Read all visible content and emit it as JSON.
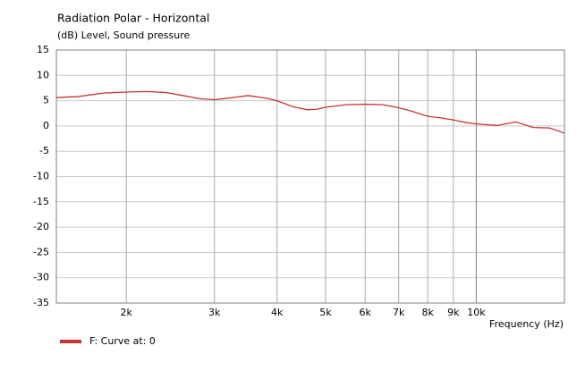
{
  "chart_data": {
    "type": "line",
    "title": "Radiation Polar - Horizontal",
    "subtitle": "(dB)  Level, Sound pressure",
    "x_label": "Frequency  (Hz)",
    "xscale": "log",
    "x": [
      1450,
      1600,
      1800,
      2000,
      2200,
      2400,
      2600,
      2800,
      3000,
      3200,
      3500,
      3800,
      4000,
      4300,
      4600,
      4800,
      5000,
      5500,
      6000,
      6500,
      7000,
      7500,
      8000,
      8500,
      9000,
      9500,
      10000,
      11000,
      12000,
      13000,
      14000,
      15000
    ],
    "series": [
      {
        "name": "F: Curve at: 0",
        "color": "#c83232",
        "values": [
          5.6,
          5.8,
          6.5,
          6.7,
          6.8,
          6.6,
          6.0,
          5.4,
          5.2,
          5.5,
          6.0,
          5.5,
          5.0,
          3.8,
          3.2,
          3.3,
          3.7,
          4.2,
          4.3,
          4.2,
          3.6,
          2.8,
          1.9,
          1.6,
          1.2,
          0.7,
          0.4,
          0.1,
          0.8,
          -0.3,
          -0.4,
          -1.4
        ]
      }
    ],
    "xlim": [
      1450,
      15000
    ],
    "ylim": [
      -35,
      15
    ],
    "xticks": [
      {
        "value": 2000,
        "label": "2k"
      },
      {
        "value": 3000,
        "label": "3k"
      },
      {
        "value": 4000,
        "label": "4k"
      },
      {
        "value": 5000,
        "label": "5k"
      },
      {
        "value": 6000,
        "label": "6k"
      },
      {
        "value": 7000,
        "label": "7k"
      },
      {
        "value": 8000,
        "label": "8k"
      },
      {
        "value": 9000,
        "label": "9k"
      },
      {
        "value": 10000,
        "label": "10k"
      }
    ],
    "yticks": [
      15,
      10,
      5,
      0,
      -5,
      -10,
      -15,
      -20,
      -25,
      -30,
      -35
    ],
    "grid": true,
    "legend": "bottom-left"
  }
}
